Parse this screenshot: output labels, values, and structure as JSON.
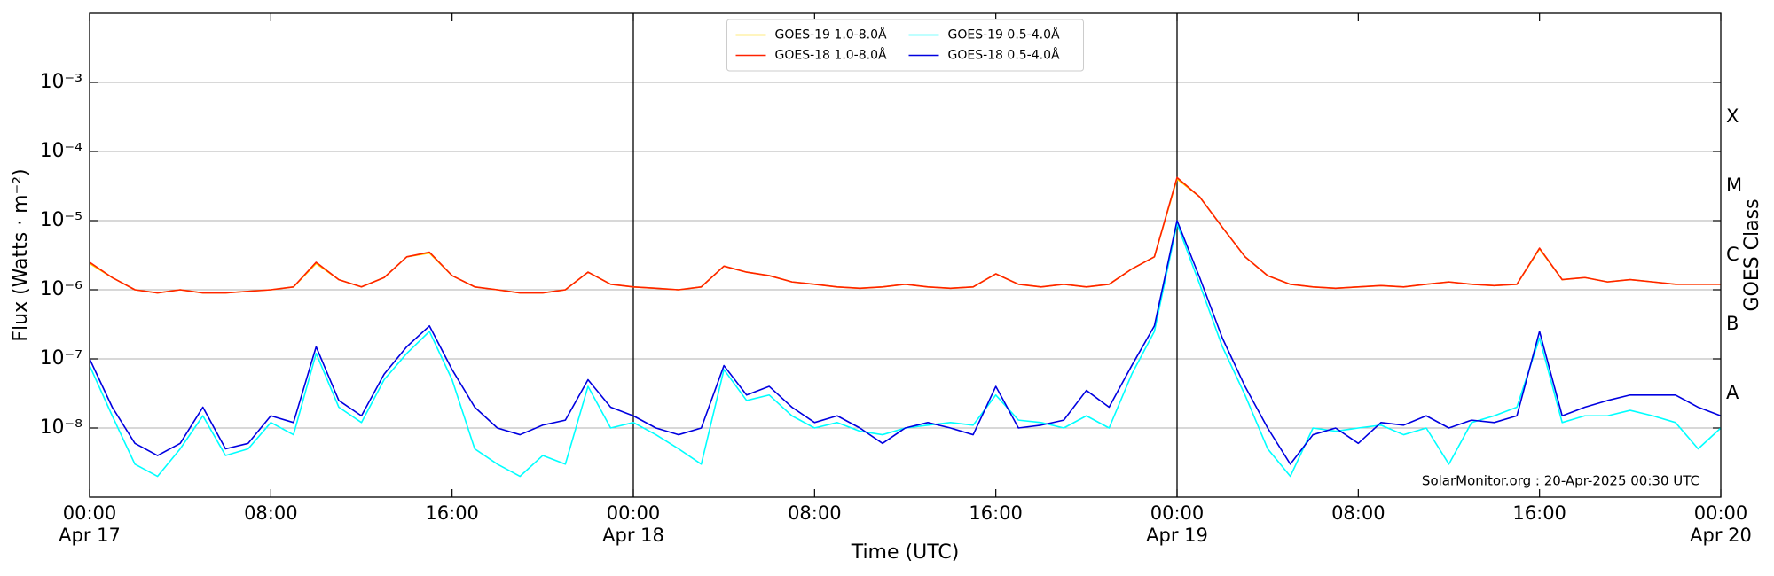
{
  "chart_data": {
    "type": "line",
    "x_label": "Time (UTC)",
    "y_label": "Flux (Watts · m⁻²)",
    "y2_label": "GOES Class",
    "annotation": "SolarMonitor.org : 20-Apr-2025 00:30 UTC",
    "log_y": true,
    "grid": true,
    "legend": "upper center",
    "legend_columns": 2,
    "xlim": [
      0,
      72
    ],
    "xticks": [
      {
        "value": 0,
        "label": "00:00\nApr 17"
      },
      {
        "value": 8,
        "label": "08:00"
      },
      {
        "value": 16,
        "label": "16:00"
      },
      {
        "value": 24,
        "label": "00:00\nApr 18"
      },
      {
        "value": 32,
        "label": "08:00"
      },
      {
        "value": 40,
        "label": "16:00"
      },
      {
        "value": 48,
        "label": "00:00\nApr 19"
      },
      {
        "value": 56,
        "label": "08:00"
      },
      {
        "value": 64,
        "label": "16:00"
      },
      {
        "value": 72,
        "label": "00:00\nApr 20"
      }
    ],
    "vlines": [
      24,
      48
    ],
    "ylim": [
      1e-09,
      0.01
    ],
    "yticks": [
      {
        "value": 1e-08,
        "label": "10⁻⁸"
      },
      {
        "value": 1e-07,
        "label": "10⁻⁷"
      },
      {
        "value": 1e-06,
        "label": "10⁻⁶"
      },
      {
        "value": 1e-05,
        "label": "10⁻⁵"
      },
      {
        "value": 0.0001,
        "label": "10⁻⁴"
      },
      {
        "value": 0.001,
        "label": "10⁻³"
      }
    ],
    "y2lim": [
      1e-09,
      0.01
    ],
    "y2ticks": [
      {
        "value": 3.16e-08,
        "label": "A"
      },
      {
        "value": 3.16e-07,
        "label": "B"
      },
      {
        "value": 3.16e-06,
        "label": "C"
      },
      {
        "value": 3.16e-05,
        "label": "M"
      },
      {
        "value": 0.000316,
        "label": "X"
      }
    ],
    "x": [
      0,
      1,
      2,
      3,
      4,
      5,
      6,
      7,
      8,
      9,
      10,
      11,
      12,
      13,
      14,
      15,
      16,
      17,
      18,
      19,
      20,
      21,
      22,
      23,
      24,
      25,
      26,
      27,
      28,
      29,
      30,
      31,
      32,
      33,
      34,
      35,
      36,
      37,
      38,
      39,
      40,
      41,
      42,
      43,
      44,
      45,
      46,
      47,
      48,
      49,
      50,
      51,
      52,
      53,
      54,
      55,
      56,
      57,
      58,
      59,
      60,
      61,
      62,
      63,
      64,
      65,
      66,
      67,
      68,
      69,
      70,
      71,
      72
    ],
    "series": [
      {
        "name": "GOES-19 1.0-8.0Å",
        "color": "#ffd700",
        "values": [
          2.4e-06,
          1.5e-06,
          1e-06,
          9e-07,
          1e-06,
          9e-07,
          9e-07,
          9.5e-07,
          1e-06,
          1.1e-06,
          2.4e-06,
          1.4e-06,
          1.1e-06,
          1.5e-06,
          3e-06,
          3.4e-06,
          1.6e-06,
          1.1e-06,
          1e-06,
          9e-07,
          9e-07,
          1e-06,
          1.8e-06,
          1.2e-06,
          1.1e-06,
          1.05e-06,
          1e-06,
          1.1e-06,
          2.2e-06,
          1.8e-06,
          1.6e-06,
          1.3e-06,
          1.2e-06,
          1.1e-06,
          1.05e-06,
          1.1e-06,
          1.2e-06,
          1.1e-06,
          1.05e-06,
          1.1e-06,
          1.7e-06,
          1.2e-06,
          1.1e-06,
          1.2e-06,
          1.1e-06,
          1.2e-06,
          2e-06,
          3e-06,
          4e-05,
          2.2e-05,
          8e-06,
          3e-06,
          1.6e-06,
          1.2e-06,
          1.1e-06,
          1.05e-06,
          1.1e-06,
          1.15e-06,
          1.1e-06,
          1.2e-06,
          1.3e-06,
          1.2e-06,
          1.15e-06,
          1.2e-06,
          3.9e-06,
          1.4e-06,
          1.5e-06,
          1.3e-06,
          1.4e-06,
          1.3e-06,
          1.2e-06,
          1.2e-06,
          1.2e-06
        ]
      },
      {
        "name": "GOES-18 1.0-8.0Å",
        "color": "#ff2200",
        "values": [
          2.5e-06,
          1.5e-06,
          1e-06,
          9e-07,
          1e-06,
          9e-07,
          9e-07,
          9.5e-07,
          1e-06,
          1.1e-06,
          2.5e-06,
          1.4e-06,
          1.1e-06,
          1.5e-06,
          3e-06,
          3.5e-06,
          1.6e-06,
          1.1e-06,
          1e-06,
          9e-07,
          9e-07,
          1e-06,
          1.8e-06,
          1.2e-06,
          1.1e-06,
          1.05e-06,
          1e-06,
          1.1e-06,
          2.2e-06,
          1.8e-06,
          1.6e-06,
          1.3e-06,
          1.2e-06,
          1.1e-06,
          1.05e-06,
          1.1e-06,
          1.2e-06,
          1.1e-06,
          1.05e-06,
          1.1e-06,
          1.7e-06,
          1.2e-06,
          1.1e-06,
          1.2e-06,
          1.1e-06,
          1.2e-06,
          2e-06,
          3e-06,
          4.2e-05,
          2.2e-05,
          8e-06,
          3e-06,
          1.6e-06,
          1.2e-06,
          1.1e-06,
          1.05e-06,
          1.1e-06,
          1.15e-06,
          1.1e-06,
          1.2e-06,
          1.3e-06,
          1.2e-06,
          1.15e-06,
          1.2e-06,
          4e-06,
          1.4e-06,
          1.5e-06,
          1.3e-06,
          1.4e-06,
          1.3e-06,
          1.2e-06,
          1.2e-06,
          1.2e-06
        ]
      },
      {
        "name": "GOES-19 0.5-4.0Å",
        "color": "#00ffff",
        "values": [
          8e-08,
          1.5e-08,
          3e-09,
          2e-09,
          5e-09,
          1.5e-08,
          4e-09,
          5e-09,
          1.2e-08,
          8e-09,
          1.2e-07,
          2e-08,
          1.2e-08,
          5e-08,
          1.2e-07,
          2.5e-07,
          5e-08,
          5e-09,
          3e-09,
          2e-09,
          4e-09,
          3e-09,
          4e-08,
          1e-08,
          1.2e-08,
          8e-09,
          5e-09,
          3e-09,
          7e-08,
          2.5e-08,
          3e-08,
          1.5e-08,
          1e-08,
          1.2e-08,
          9e-09,
          8e-09,
          1e-08,
          1.1e-08,
          1.2e-08,
          1.1e-08,
          3e-08,
          1.3e-08,
          1.2e-08,
          1e-08,
          1.5e-08,
          1e-08,
          6e-08,
          2.5e-07,
          9e-06,
          1.2e-06,
          1.5e-07,
          3e-08,
          5e-09,
          2e-09,
          1e-08,
          9e-09,
          1e-08,
          1.1e-08,
          8e-09,
          1e-08,
          3e-09,
          1.2e-08,
          1.5e-08,
          2e-08,
          2e-07,
          1.2e-08,
          1.5e-08,
          1.5e-08,
          1.8e-08,
          1.5e-08,
          1.2e-08,
          5e-09,
          1e-08
        ]
      },
      {
        "name": "GOES-18 0.5-4.0Å",
        "color": "#0000e0",
        "values": [
          1e-07,
          2e-08,
          6e-09,
          4e-09,
          6e-09,
          2e-08,
          5e-09,
          6e-09,
          1.5e-08,
          1.2e-08,
          1.5e-07,
          2.5e-08,
          1.5e-08,
          6e-08,
          1.5e-07,
          3e-07,
          7e-08,
          2e-08,
          1e-08,
          8e-09,
          1.1e-08,
          1.3e-08,
          5e-08,
          2e-08,
          1.5e-08,
          1e-08,
          8e-09,
          1e-08,
          8e-08,
          3e-08,
          4e-08,
          2e-08,
          1.2e-08,
          1.5e-08,
          1e-08,
          6e-09,
          1e-08,
          1.2e-08,
          1e-08,
          8e-09,
          4e-08,
          1e-08,
          1.1e-08,
          1.3e-08,
          3.5e-08,
          2e-08,
          8e-08,
          3e-07,
          1e-05,
          1.5e-06,
          2e-07,
          4e-08,
          1e-08,
          3e-09,
          8e-09,
          1e-08,
          6e-09,
          1.2e-08,
          1.1e-08,
          1.5e-08,
          1e-08,
          1.3e-08,
          1.2e-08,
          1.5e-08,
          2.5e-07,
          1.5e-08,
          2e-08,
          2.5e-08,
          3e-08,
          3e-08,
          3e-08,
          2e-08,
          1.5e-08
        ]
      }
    ]
  }
}
